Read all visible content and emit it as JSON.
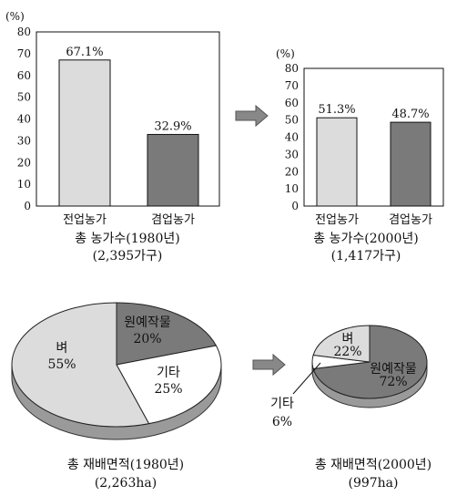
{
  "chart_data": [
    {
      "type": "bar",
      "ylabel": "(%)",
      "ylim": [
        0,
        80
      ],
      "yticks": [
        "0",
        "10",
        "20",
        "30",
        "40",
        "50",
        "60",
        "70",
        "80"
      ],
      "categories": [
        "전업농가",
        "겸업농가"
      ],
      "values": [
        67.1,
        32.9
      ],
      "value_labels": [
        "67.1%",
        "32.9%"
      ],
      "colors": [
        "#dcdcdc",
        "#7a7a7a"
      ],
      "caption": [
        "총  농가수(1980년)",
        "(2,395가구)"
      ]
    },
    {
      "type": "bar",
      "ylabel": "(%)",
      "ylim": [
        0,
        80
      ],
      "yticks": [
        "0",
        "10",
        "20",
        "30",
        "40",
        "50",
        "60",
        "70",
        "80"
      ],
      "categories": [
        "전업농가",
        "겸업농가"
      ],
      "values": [
        51.3,
        48.7
      ],
      "value_labels": [
        "51.3%",
        "48.7%"
      ],
      "colors": [
        "#dcdcdc",
        "#7a7a7a"
      ],
      "caption": [
        "총  농가수(2000년)",
        "(1,417가구)"
      ]
    },
    {
      "type": "pie",
      "slices": [
        {
          "name": "원예작물",
          "value": 20,
          "label": "20%",
          "color": "#7a7a7a"
        },
        {
          "name": "기타",
          "value": 25,
          "label": "25%",
          "color": "#ffffff"
        },
        {
          "name": "벼",
          "value": 55,
          "label": "55%",
          "color": "#dcdcdc"
        }
      ],
      "caption": [
        "총  재배면적(1980년)",
        "(2,263ha)"
      ]
    },
    {
      "type": "pie",
      "slices": [
        {
          "name": "원예작물",
          "value": 72,
          "label": "72%",
          "color": "#7a7a7a"
        },
        {
          "name": "기타",
          "value": 6,
          "label": "6%",
          "color": "#ffffff"
        },
        {
          "name": "벼",
          "value": 22,
          "label": "22%",
          "color": "#dcdcdc"
        }
      ],
      "caption": [
        "총  재배면적(2000년)",
        "(997ha)"
      ]
    }
  ]
}
